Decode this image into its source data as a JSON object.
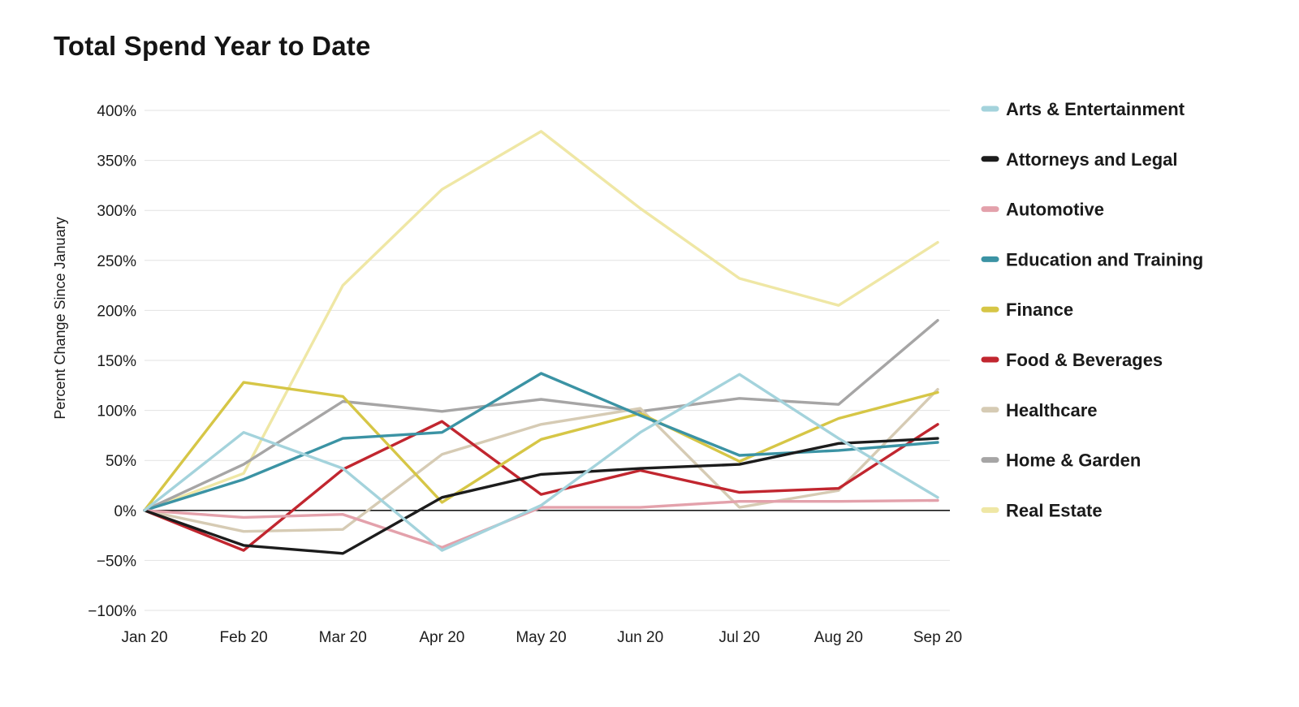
{
  "chart_data": {
    "type": "line",
    "title": "Total Spend Year to Date",
    "xlabel": "",
    "ylabel": "Percent Change Since January",
    "categories": [
      "Jan 20",
      "Feb 20",
      "Mar 20",
      "Apr 20",
      "May 20",
      "Jun 20",
      "Jul 20",
      "Aug 20",
      "Sep 20"
    ],
    "ylim": [
      -100,
      400
    ],
    "yticks": [
      400,
      350,
      300,
      250,
      200,
      150,
      100,
      50,
      0,
      -50,
      -100
    ],
    "ytick_labels": [
      "400%",
      "350%",
      "300%",
      "250%",
      "200%",
      "150%",
      "100%",
      "50%",
      "0%",
      "−50%",
      "−100%"
    ],
    "grid": true,
    "legend_position": "right",
    "series": [
      {
        "name": "Arts & Entertainment",
        "color": "#a4d3dc",
        "values": [
          0,
          78,
          42,
          -40,
          5,
          78,
          136,
          72,
          13
        ]
      },
      {
        "name": "Attorneys and Legal",
        "color": "#1c1c1c",
        "values": [
          0,
          -35,
          -43,
          13,
          36,
          42,
          46,
          67,
          72
        ]
      },
      {
        "name": "Automotive",
        "color": "#e3a1ab",
        "values": [
          0,
          -7,
          -4,
          -37,
          3,
          3,
          9,
          9,
          10
        ]
      },
      {
        "name": "Education and Training",
        "color": "#3b93a4",
        "values": [
          0,
          31,
          72,
          78,
          137,
          95,
          55,
          60,
          68
        ]
      },
      {
        "name": "Finance",
        "color": "#d6c646",
        "values": [
          0,
          128,
          114,
          8,
          71,
          97,
          49,
          92,
          118
        ]
      },
      {
        "name": "Food & Beverages",
        "color": "#c1262f",
        "values": [
          0,
          -40,
          41,
          89,
          16,
          40,
          18,
          22,
          86
        ]
      },
      {
        "name": "Healthcare",
        "color": "#d6cbb4",
        "values": [
          0,
          -21,
          -19,
          56,
          86,
          102,
          3,
          20,
          121
        ]
      },
      {
        "name": "Home & Garden",
        "color": "#a6a5a5",
        "values": [
          0,
          46,
          109,
          99,
          111,
          99,
          112,
          106,
          190
        ]
      },
      {
        "name": "Real Estate",
        "color": "#efe7a5",
        "values": [
          0,
          37,
          225,
          321,
          379,
          302,
          232,
          205,
          268
        ]
      }
    ]
  }
}
